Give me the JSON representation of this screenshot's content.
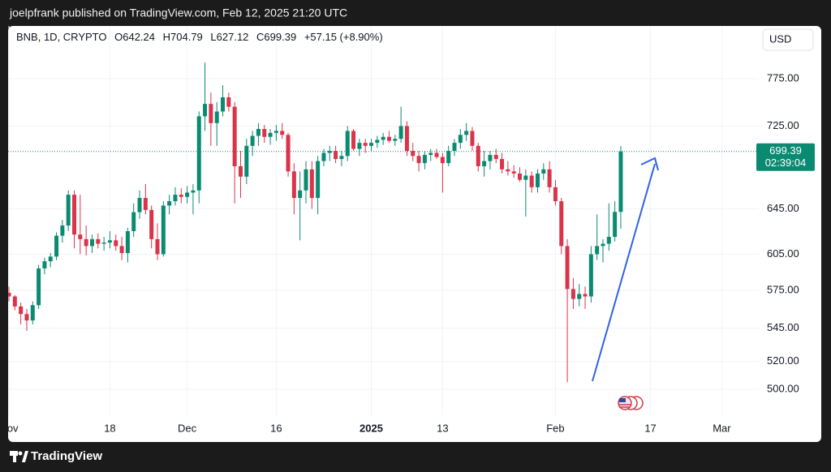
{
  "header": {
    "text": "joelpfrank published on TradingView.com, Feb 12, 2025 21:20 UTC"
  },
  "footer": {
    "brand": "TradingView"
  },
  "chart_data": {
    "type": "candlestick",
    "legend": {
      "symbol": "BNB, 1D, CRYPTO",
      "open": "O642.24",
      "high": "H704.79",
      "low": "L627.12",
      "close": "C699.39",
      "change": "+57.15 (+8.90%)"
    },
    "currency": "USD",
    "last_price": 699.39,
    "countdown": "02:39:04",
    "up_color": "#0b8a72",
    "down_color": "#d9344a",
    "log_scale": true,
    "ylim": [
      482,
      835
    ],
    "yticks": [
      {
        "value": 775,
        "label": "775.00"
      },
      {
        "value": 725,
        "label": "725.00"
      },
      {
        "value": 645,
        "label": "645.00"
      },
      {
        "value": 605,
        "label": "605.00"
      },
      {
        "value": 575,
        "label": "575.00"
      },
      {
        "value": 545,
        "label": "545.00"
      },
      {
        "value": 520,
        "label": "520.00"
      },
      {
        "value": 500,
        "label": "500.00"
      }
    ],
    "xticks": [
      {
        "value": "2024-11-01",
        "label": "Nov"
      },
      {
        "value": "2024-11-18",
        "label": "18"
      },
      {
        "value": "2024-12-01",
        "label": "Dec"
      },
      {
        "value": "2024-12-16",
        "label": "16"
      },
      {
        "value": "2025-01-01",
        "label": "2025"
      },
      {
        "value": "2025-01-13",
        "label": "13"
      },
      {
        "value": "2025-02-01",
        "label": "Feb"
      },
      {
        "value": "2025-02-17",
        "label": "17"
      },
      {
        "value": "2025-03-01",
        "label": "Mar"
      }
    ],
    "x": [
      "2024-11-01",
      "2024-11-02",
      "2024-11-03",
      "2024-11-04",
      "2024-11-05",
      "2024-11-06",
      "2024-11-07",
      "2024-11-08",
      "2024-11-09",
      "2024-11-10",
      "2024-11-11",
      "2024-11-12",
      "2024-11-13",
      "2024-11-14",
      "2024-11-15",
      "2024-11-16",
      "2024-11-17",
      "2024-11-18",
      "2024-11-19",
      "2024-11-20",
      "2024-11-21",
      "2024-11-22",
      "2024-11-23",
      "2024-11-24",
      "2024-11-25",
      "2024-11-26",
      "2024-11-27",
      "2024-11-28",
      "2024-11-29",
      "2024-11-30",
      "2024-12-01",
      "2024-12-02",
      "2024-12-03",
      "2024-12-04",
      "2024-12-05",
      "2024-12-06",
      "2024-12-07",
      "2024-12-08",
      "2024-12-09",
      "2024-12-10",
      "2024-12-11",
      "2024-12-12",
      "2024-12-13",
      "2024-12-14",
      "2024-12-15",
      "2024-12-16",
      "2024-12-17",
      "2024-12-18",
      "2024-12-19",
      "2024-12-20",
      "2024-12-21",
      "2024-12-22",
      "2024-12-23",
      "2024-12-24",
      "2024-12-25",
      "2024-12-26",
      "2024-12-27",
      "2024-12-28",
      "2024-12-29",
      "2024-12-30",
      "2024-12-31",
      "2025-01-01",
      "2025-01-02",
      "2025-01-03",
      "2025-01-04",
      "2025-01-05",
      "2025-01-06",
      "2025-01-07",
      "2025-01-08",
      "2025-01-09",
      "2025-01-10",
      "2025-01-11",
      "2025-01-12",
      "2025-01-13",
      "2025-01-14",
      "2025-01-15",
      "2025-01-16",
      "2025-01-17",
      "2025-01-18",
      "2025-01-19",
      "2025-01-20",
      "2025-01-21",
      "2025-01-22",
      "2025-01-23",
      "2025-01-24",
      "2025-01-25",
      "2025-01-26",
      "2025-01-27",
      "2025-01-28",
      "2025-01-29",
      "2025-01-30",
      "2025-01-31",
      "2025-02-01",
      "2025-02-02",
      "2025-02-03",
      "2025-02-04",
      "2025-02-05",
      "2025-02-06",
      "2025-02-07",
      "2025-02-08",
      "2025-02-09",
      "2025-02-10",
      "2025-02-11",
      "2025-02-12"
    ],
    "open": [
      573,
      570,
      562,
      556,
      551,
      563,
      593,
      599,
      603,
      621,
      630,
      658,
      622,
      618,
      612,
      618,
      614,
      615,
      617,
      612,
      606,
      625,
      642,
      655,
      644,
      618,
      605,
      648,
      652,
      658,
      656,
      660,
      662,
      735,
      748,
      728,
      740,
      755,
      745,
      685,
      675,
      705,
      715,
      722,
      714,
      718,
      720,
      716,
      680,
      655,
      662,
      682,
      655,
      690,
      698,
      700,
      692,
      695,
      720,
      702,
      708,
      705,
      708,
      711,
      714,
      710,
      712,
      725,
      700,
      695,
      688,
      696,
      698,
      694,
      688,
      700,
      708,
      716,
      720,
      705,
      685,
      690,
      696,
      692,
      682,
      680,
      678,
      672,
      676,
      665,
      678,
      682,
      665,
      652,
      612,
      576,
      568,
      572,
      570,
      605,
      612,
      614,
      620,
      642.24
    ],
    "high": [
      578,
      571,
      565,
      560,
      566,
      596,
      602,
      606,
      624,
      635,
      662,
      662,
      658,
      630,
      622,
      623,
      620,
      625,
      622,
      620,
      628,
      650,
      662,
      668,
      648,
      632,
      652,
      658,
      665,
      664,
      666,
      668,
      740,
      793,
      760,
      750,
      768,
      760,
      750,
      700,
      712,
      720,
      728,
      726,
      722,
      726,
      728,
      718,
      688,
      680,
      690,
      690,
      695,
      702,
      705,
      705,
      700,
      725,
      722,
      712,
      712,
      712,
      715,
      718,
      720,
      716,
      745,
      730,
      708,
      700,
      700,
      702,
      702,
      698,
      705,
      712,
      722,
      728,
      724,
      708,
      700,
      700,
      702,
      698,
      690,
      686,
      684,
      682,
      680,
      682,
      688,
      690,
      672,
      655,
      618,
      585,
      580,
      578,
      612,
      640,
      618,
      650,
      652,
      704.79
    ],
    "low": [
      566,
      559,
      548,
      543,
      548,
      560,
      588,
      594,
      600,
      615,
      625,
      610,
      605,
      604,
      606,
      610,
      608,
      610,
      608,
      600,
      598,
      620,
      636,
      640,
      610,
      600,
      603,
      640,
      648,
      650,
      650,
      640,
      650,
      720,
      705,
      705,
      735,
      740,
      650,
      655,
      668,
      695,
      705,
      708,
      706,
      710,
      712,
      675,
      640,
      617,
      650,
      645,
      640,
      685,
      690,
      688,
      685,
      690,
      700,
      695,
      698,
      700,
      703,
      706,
      708,
      705,
      708,
      695,
      690,
      680,
      682,
      690,
      692,
      660,
      685,
      695,
      702,
      710,
      700,
      680,
      675,
      682,
      688,
      678,
      676,
      674,
      670,
      638,
      660,
      660,
      672,
      660,
      648,
      605,
      505,
      560,
      562,
      560,
      565,
      600,
      598,
      608,
      616,
      627.12
    ],
    "close": [
      570,
      562,
      556,
      551,
      563,
      593,
      599,
      603,
      621,
      630,
      658,
      622,
      618,
      612,
      618,
      614,
      615,
      617,
      612,
      606,
      625,
      642,
      655,
      644,
      618,
      605,
      648,
      652,
      658,
      656,
      660,
      662,
      735,
      748,
      728,
      740,
      755,
      745,
      685,
      675,
      705,
      715,
      722,
      714,
      718,
      720,
      716,
      680,
      655,
      662,
      682,
      655,
      690,
      698,
      700,
      692,
      695,
      720,
      702,
      708,
      705,
      708,
      711,
      714,
      710,
      712,
      725,
      700,
      695,
      688,
      696,
      698,
      694,
      688,
      700,
      708,
      716,
      720,
      705,
      685,
      690,
      696,
      692,
      682,
      680,
      678,
      672,
      676,
      665,
      678,
      682,
      665,
      652,
      612,
      576,
      568,
      572,
      570,
      605,
      612,
      614,
      620,
      642.24,
      699.39
    ]
  }
}
